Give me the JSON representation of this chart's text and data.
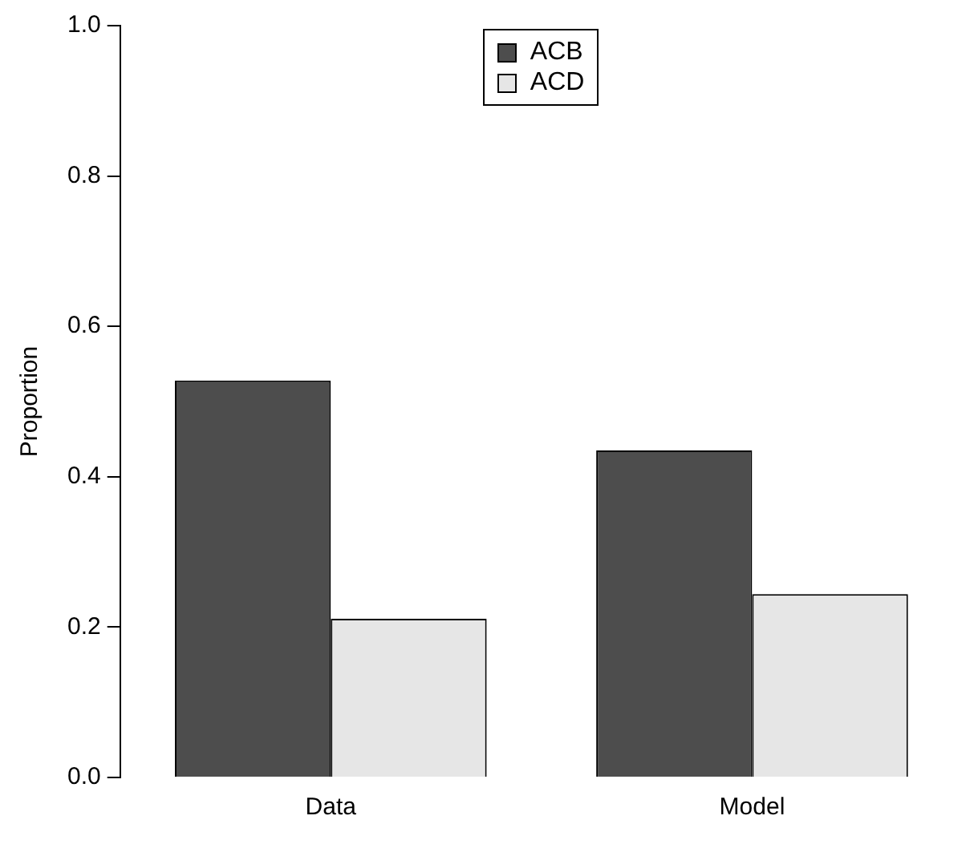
{
  "chart_data": {
    "type": "bar",
    "ylabel": "Proportion",
    "categories": [
      "Data",
      "Model"
    ],
    "series": [
      {
        "name": "ACB",
        "color": "#4d4d4d",
        "values": [
          0.528,
          0.435
        ]
      },
      {
        "name": "ACD",
        "color": "#e6e6e6",
        "values": [
          0.211,
          0.244
        ]
      }
    ],
    "ylim": [
      0,
      1
    ],
    "yticks": [
      {
        "value": 0,
        "label": "0.0"
      },
      {
        "value": 0.2,
        "label": "0.2"
      },
      {
        "value": 0.4,
        "label": "0.4"
      },
      {
        "value": 0.6,
        "label": "0.6"
      },
      {
        "value": 0.8,
        "label": "0.8"
      },
      {
        "value": 1,
        "label": "1.0"
      }
    ],
    "grid": false,
    "legend": "top"
  }
}
